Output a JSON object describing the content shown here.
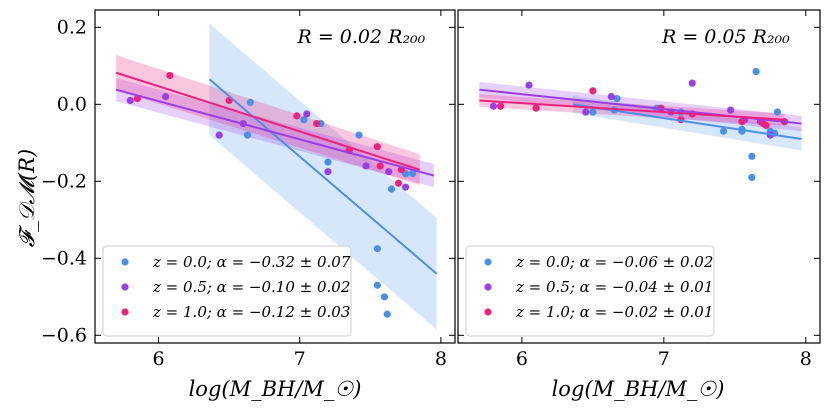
{
  "ylabel": "𝓕_𝒟𝓜(R)",
  "xlabel": "log(M_BH/M_☉)",
  "colors": {
    "z0": "#4a90e8",
    "z05": "#9a3fe6",
    "z1": "#f0207e"
  },
  "chart_data": [
    {
      "type": "scatter",
      "panel": "left",
      "annotation": "R = 0.02 R₂₀₀",
      "xlim": [
        5.55,
        8.1
      ],
      "ylim": [
        -0.62,
        0.245
      ],
      "xticks": [
        "6",
        "7",
        "8"
      ],
      "yticks": [
        "0.2",
        "0.0",
        "−0.2",
        "−0.4",
        "−0.6"
      ],
      "series": [
        {
          "name": "z = 0.0; α = −0.32 ± 0.07",
          "color_key": "z0",
          "points": [
            [
              6.65,
              0.005
            ],
            [
              6.63,
              -0.08
            ],
            [
              7.03,
              -0.04
            ],
            [
              7.15,
              -0.05
            ],
            [
              7.2,
              -0.15
            ],
            [
              7.42,
              -0.08
            ],
            [
              7.55,
              -0.375
            ],
            [
              7.55,
              -0.47
            ],
            [
              7.6,
              -0.5
            ],
            [
              7.62,
              -0.545
            ],
            [
              7.65,
              -0.22
            ],
            [
              7.75,
              -0.18
            ],
            [
              7.8,
              -0.18
            ]
          ],
          "fit": {
            "x": [
              6.36,
              7.97
            ],
            "y": [
              0.065,
              -0.44
            ]
          },
          "band": {
            "x": [
              6.36,
              7.97
            ],
            "upper": [
              0.21,
              -0.295
            ],
            "lower": [
              -0.08,
              -0.585
            ]
          }
        },
        {
          "name": "z = 0.5; α = −0.10 ± 0.02",
          "color_key": "z05",
          "points": [
            [
              5.8,
              0.01
            ],
            [
              6.05,
              0.02
            ],
            [
              6.43,
              -0.08
            ],
            [
              6.6,
              -0.05
            ],
            [
              7.05,
              -0.025
            ],
            [
              7.2,
              -0.175
            ],
            [
              7.35,
              -0.12
            ],
            [
              7.47,
              -0.16
            ],
            [
              7.63,
              -0.175
            ],
            [
              7.75,
              -0.215
            ]
          ],
          "fit": {
            "x": [
              5.7,
              7.95
            ],
            "y": [
              0.038,
              -0.185
            ]
          },
          "band": {
            "x": [
              5.7,
              7.95
            ],
            "upper": [
              0.068,
              -0.155
            ],
            "lower": [
              0.008,
              -0.215
            ]
          }
        },
        {
          "name": "z = 1.0; α = −0.12 ± 0.03",
          "color_key": "z1",
          "points": [
            [
              5.85,
              0.015
            ],
            [
              6.08,
              0.075
            ],
            [
              6.5,
              0.01
            ],
            [
              6.98,
              -0.03
            ],
            [
              7.12,
              -0.05
            ],
            [
              7.35,
              -0.12
            ],
            [
              7.55,
              -0.11
            ],
            [
              7.57,
              -0.16
            ],
            [
              7.7,
              -0.205
            ],
            [
              7.72,
              -0.17
            ]
          ],
          "fit": {
            "x": [
              5.7,
              7.85
            ],
            "y": [
              0.082,
              -0.17
            ]
          },
          "band": {
            "x": [
              5.7,
              7.85
            ],
            "upper": [
              0.128,
              -0.13
            ],
            "lower": [
              0.036,
              -0.21
            ]
          }
        }
      ],
      "legend": {
        "location": "lower-left"
      }
    },
    {
      "type": "scatter",
      "panel": "right",
      "annotation": "R = 0.05 R₂₀₀",
      "xlim": [
        5.55,
        8.1
      ],
      "ylim": [
        -0.62,
        0.245
      ],
      "xticks": [
        "6",
        "7",
        "8"
      ],
      "yticks": [],
      "series": [
        {
          "name": "z = 0.0; α = −0.06 ± 0.02",
          "color_key": "z0",
          "points": [
            [
              6.5,
              -0.02
            ],
            [
              6.65,
              -0.015
            ],
            [
              6.67,
              0.015
            ],
            [
              6.95,
              -0.01
            ],
            [
              7.12,
              -0.02
            ],
            [
              7.42,
              -0.07
            ],
            [
              7.55,
              -0.065
            ],
            [
              7.55,
              -0.07
            ],
            [
              7.62,
              -0.135
            ],
            [
              7.62,
              -0.19
            ],
            [
              7.65,
              0.085
            ],
            [
              7.75,
              -0.07
            ],
            [
              7.78,
              -0.075
            ],
            [
              7.8,
              -0.02
            ]
          ],
          "fit": {
            "x": [
              6.36,
              7.97
            ],
            "y": [
              0.0,
              -0.09
            ]
          },
          "band": {
            "x": [
              6.36,
              7.97
            ],
            "upper": [
              0.022,
              -0.06
            ],
            "lower": [
              -0.022,
              -0.12
            ]
          }
        },
        {
          "name": "z = 0.5; α = −0.04 ± 0.01",
          "color_key": "z05",
          "points": [
            [
              5.8,
              -0.005
            ],
            [
              6.05,
              0.05
            ],
            [
              6.45,
              -0.02
            ],
            [
              6.63,
              0.02
            ],
            [
              7.05,
              -0.02
            ],
            [
              7.2,
              0.055
            ],
            [
              7.47,
              -0.015
            ],
            [
              7.57,
              -0.04
            ],
            [
              7.68,
              -0.045
            ],
            [
              7.75,
              -0.08
            ]
          ],
          "fit": {
            "x": [
              5.7,
              7.97
            ],
            "y": [
              0.038,
              -0.05
            ]
          },
          "band": {
            "x": [
              5.7,
              7.97
            ],
            "upper": [
              0.058,
              -0.03
            ],
            "lower": [
              0.018,
              -0.07
            ]
          }
        },
        {
          "name": "z = 1.0; α = −0.02 ± 0.01",
          "color_key": "z1",
          "points": [
            [
              5.85,
              -0.005
            ],
            [
              6.1,
              -0.01
            ],
            [
              6.5,
              0.035
            ],
            [
              6.98,
              -0.01
            ],
            [
              7.12,
              -0.04
            ],
            [
              7.2,
              -0.025
            ],
            [
              7.55,
              -0.045
            ],
            [
              7.7,
              -0.05
            ],
            [
              7.72,
              -0.055
            ],
            [
              7.85,
              -0.045
            ]
          ],
          "fit": {
            "x": [
              5.7,
              7.85
            ],
            "y": [
              0.01,
              -0.04
            ]
          },
          "band": {
            "x": [
              5.7,
              7.85
            ],
            "upper": [
              0.026,
              -0.024
            ],
            "lower": [
              -0.006,
              -0.056
            ]
          }
        }
      ],
      "legend": {
        "location": "lower-left"
      }
    }
  ]
}
